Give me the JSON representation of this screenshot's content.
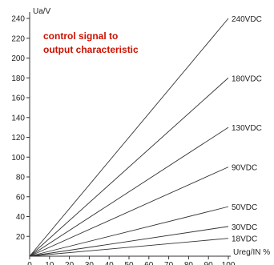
{
  "chart_data": {
    "type": "line",
    "title": [
      "control signal to",
      "output characteristic"
    ],
    "title_color": "#cc1100",
    "xlabel": "Ureg/IN %",
    "ylabel": "Ua/V",
    "xlim": [
      0,
      100
    ],
    "ylim": [
      0,
      240
    ],
    "x_ticks": [
      0,
      10,
      20,
      30,
      40,
      50,
      60,
      70,
      80,
      90,
      100
    ],
    "y_ticks": [
      20,
      40,
      60,
      80,
      100,
      120,
      140,
      160,
      180,
      200,
      220,
      240
    ],
    "grid": false,
    "line_color": "#333333",
    "x": [
      0,
      100
    ],
    "series": [
      {
        "name": "240VDC",
        "values": [
          0,
          240
        ]
      },
      {
        "name": "180VDC",
        "values": [
          0,
          180
        ]
      },
      {
        "name": "130VDC",
        "values": [
          0,
          130
        ]
      },
      {
        "name": "90VDC",
        "values": [
          0,
          90
        ]
      },
      {
        "name": "50VDC",
        "values": [
          0,
          50
        ]
      },
      {
        "name": "30VDC",
        "values": [
          0,
          30
        ]
      },
      {
        "name": "18VDC",
        "values": [
          0,
          18
        ]
      }
    ]
  }
}
